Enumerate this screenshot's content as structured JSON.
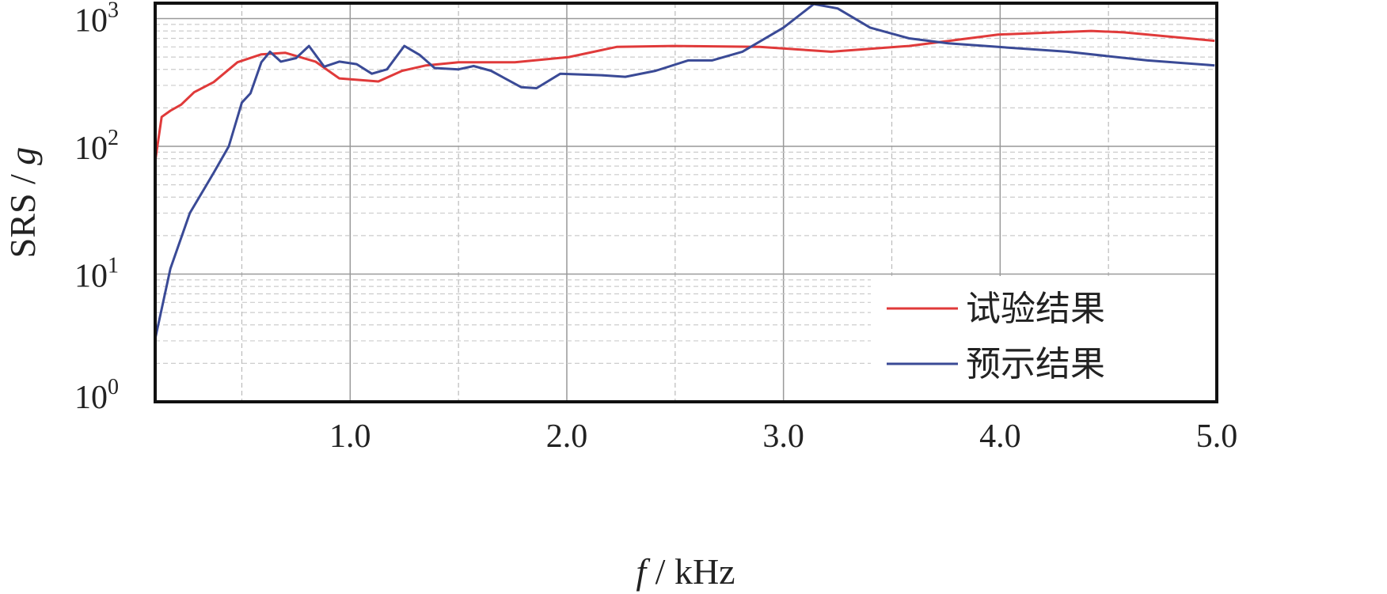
{
  "chart_data": {
    "type": "line",
    "title": "",
    "xlabel_italic": "f",
    "xlabel_rest": " / kHz",
    "ylabel_plain": "SRS / ",
    "ylabel_italic": "g",
    "xlim": [
      0.1,
      5.0
    ],
    "ylim": [
      1,
      1320
    ],
    "yscale": "log",
    "grid": true,
    "legend_position": "bottom-right",
    "xticks": [
      1.0,
      2.0,
      3.0,
      4.0,
      5.0
    ],
    "xtick_labels": [
      "1.0",
      "2.0",
      "3.0",
      "4.0",
      "5.0"
    ],
    "yticks": [
      1,
      10,
      100,
      1000
    ],
    "ytick_labels": [
      {
        "base": "10",
        "exp": "0"
      },
      {
        "base": "10",
        "exp": "1"
      },
      {
        "base": "10",
        "exp": "2"
      },
      {
        "base": "10",
        "exp": "3"
      }
    ],
    "series": [
      {
        "name": "试验结果",
        "color": "#e03a3a",
        "x": [
          0.1,
          0.13,
          0.17,
          0.22,
          0.28,
          0.37,
          0.48,
          0.59,
          0.7,
          0.84,
          0.95,
          1.13,
          1.24,
          1.35,
          1.5,
          1.76,
          2.01,
          2.23,
          2.49,
          2.89,
          3.22,
          3.58,
          3.99,
          4.42,
          4.57,
          4.99
        ],
        "y": [
          76,
          170,
          190,
          212,
          265,
          318,
          455,
          525,
          540,
          460,
          340,
          322,
          390,
          430,
          455,
          455,
          500,
          600,
          610,
          600,
          550,
          610,
          750,
          800,
          780,
          670
        ]
      },
      {
        "name": "预示结果",
        "color": "#3a4a96",
        "x": [
          0.1,
          0.17,
          0.26,
          0.37,
          0.44,
          0.5,
          0.54,
          0.59,
          0.63,
          0.68,
          0.75,
          0.81,
          0.88,
          0.95,
          1.03,
          1.1,
          1.17,
          1.25,
          1.32,
          1.39,
          1.5,
          1.57,
          1.65,
          1.79,
          1.86,
          1.97,
          2.16,
          2.27,
          2.41,
          2.56,
          2.67,
          2.81,
          3.0,
          3.14,
          3.25,
          3.4,
          3.58,
          3.76,
          3.99,
          4.31,
          4.68,
          4.99
        ],
        "y": [
          3.1,
          11,
          30,
          62,
          100,
          220,
          260,
          455,
          550,
          460,
          490,
          610,
          420,
          460,
          440,
          370,
          400,
          610,
          520,
          410,
          400,
          425,
          390,
          290,
          285,
          370,
          360,
          350,
          390,
          470,
          470,
          550,
          850,
          1300,
          1200,
          850,
          700,
          640,
          600,
          550,
          470,
          430
        ]
      }
    ]
  }
}
